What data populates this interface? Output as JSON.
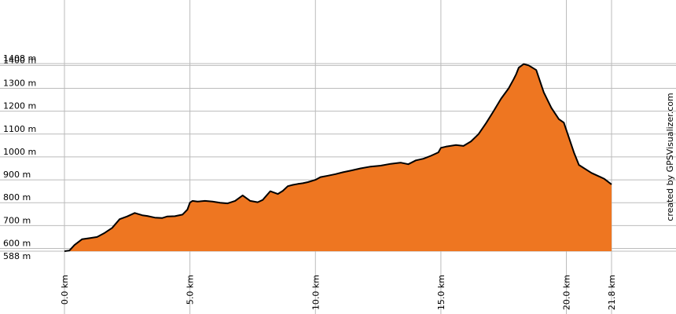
{
  "chart_data": {
    "type": "area",
    "title": "",
    "xlabel": "",
    "ylabel": "",
    "x_unit": "km",
    "y_unit": "m",
    "xlim": [
      0,
      21.8
    ],
    "ylim": [
      588,
      1408
    ],
    "grid": true,
    "colors": {
      "fill": "#ee7621",
      "line": "#000000",
      "grid": "#bbbbbb"
    },
    "y_ticks": [
      {
        "value": 588,
        "label": "588 m"
      },
      {
        "value": 600,
        "label": "600 m"
      },
      {
        "value": 700,
        "label": "700 m"
      },
      {
        "value": 800,
        "label": "800 m"
      },
      {
        "value": 900,
        "label": "900 m"
      },
      {
        "value": 1000,
        "label": "1000 m"
      },
      {
        "value": 1100,
        "label": "1100 m"
      },
      {
        "value": 1200,
        "label": "1200 m"
      },
      {
        "value": 1300,
        "label": "1300 m"
      },
      {
        "value": 1400,
        "label": "1400 m"
      },
      {
        "value": 1408,
        "label": "1408 m"
      }
    ],
    "x_ticks": [
      {
        "value": 0,
        "label": "0.0 km"
      },
      {
        "value": 5,
        "label": "5.0 km"
      },
      {
        "value": 10,
        "label": "10.0 km"
      },
      {
        "value": 15,
        "label": "15.0 km"
      },
      {
        "value": 20,
        "label": "20.0 km"
      },
      {
        "value": 21.8,
        "label": "21.8 km"
      }
    ],
    "credit": "created by GPSVisualizer.com",
    "x": [
      0,
      0.2,
      0.4,
      0.7,
      1.0,
      1.3,
      1.6,
      1.9,
      2.2,
      2.5,
      2.8,
      3.1,
      3.3,
      3.6,
      3.9,
      4.1,
      4.4,
      4.7,
      4.9,
      5.0,
      5.1,
      5.3,
      5.6,
      5.9,
      6.2,
      6.5,
      6.8,
      7.1,
      7.4,
      7.7,
      7.9,
      8.2,
      8.5,
      8.7,
      8.9,
      9.1,
      9.3,
      9.5,
      9.7,
      10.0,
      10.2,
      10.5,
      10.8,
      11.1,
      11.4,
      11.8,
      12.2,
      12.6,
      13.0,
      13.4,
      13.7,
      14.0,
      14.3,
      14.6,
      14.9,
      15.0,
      15.2,
      15.6,
      15.9,
      16.2,
      16.5,
      16.8,
      17.1,
      17.4,
      17.7,
      17.9,
      18.0,
      18.1,
      18.3,
      18.5,
      18.8,
      19.1,
      19.4,
      19.7,
      19.9,
      20.1,
      20.3,
      20.5,
      21.0,
      21.5,
      21.8
    ],
    "y": [
      588,
      591,
      615,
      640,
      645,
      650,
      668,
      690,
      728,
      740,
      755,
      745,
      742,
      735,
      733,
      740,
      741,
      748,
      770,
      800,
      808,
      805,
      808,
      805,
      800,
      797,
      808,
      832,
      808,
      802,
      812,
      850,
      838,
      852,
      872,
      878,
      882,
      885,
      890,
      900,
      912,
      918,
      925,
      933,
      940,
      950,
      958,
      962,
      970,
      975,
      968,
      985,
      992,
      1005,
      1020,
      1040,
      1045,
      1052,
      1048,
      1068,
      1100,
      1148,
      1200,
      1255,
      1300,
      1340,
      1362,
      1390,
      1406,
      1400,
      1380,
      1282,
      1215,
      1165,
      1150,
      1085,
      1020,
      965,
      930,
      905,
      880
    ]
  }
}
